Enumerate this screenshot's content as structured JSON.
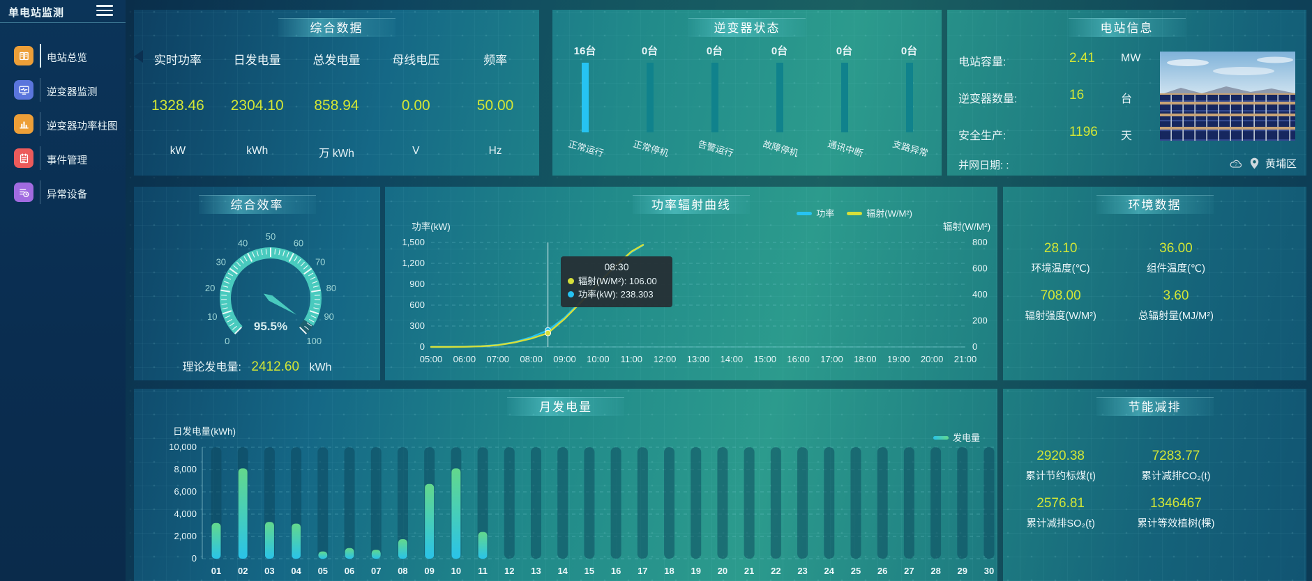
{
  "app": {
    "title": "单电站监测"
  },
  "sidebar": {
    "items": [
      {
        "label": "电站总览",
        "icon": "overview-book-icon",
        "color": "#ED9F38",
        "active": true
      },
      {
        "label": "逆变器监测",
        "icon": "inverter-monitor-icon",
        "color": "#5A75DC",
        "active": false
      },
      {
        "label": "逆变器功率柱图",
        "icon": "power-barchart-icon",
        "color": "#ED9F38",
        "active": false
      },
      {
        "label": "事件管理",
        "icon": "event-journal-icon",
        "color": "#EC5B5B",
        "active": false
      },
      {
        "label": "异常设备",
        "icon": "abnormal-device-icon",
        "color": "#A16BE0",
        "active": false
      }
    ]
  },
  "panels": {
    "summary": {
      "title": "综合数据",
      "metrics": [
        {
          "label": "实时功率",
          "value": "1328.46",
          "unit": "kW"
        },
        {
          "label": "日发电量",
          "value": "2304.10",
          "unit": "kWh"
        },
        {
          "label": "总发电量",
          "value": "858.94",
          "unit": "万 kWh"
        },
        {
          "label": "母线电压",
          "value": "0.00",
          "unit": "V"
        },
        {
          "label": "频率",
          "value": "50.00",
          "unit": "Hz"
        }
      ]
    },
    "inverter_status": {
      "title": "逆变器状态",
      "bars": [
        {
          "count": "16台",
          "label": "正常运行",
          "highlight": true
        },
        {
          "count": "0台",
          "label": "正常停机",
          "highlight": false
        },
        {
          "count": "0台",
          "label": "告警运行",
          "highlight": false
        },
        {
          "count": "0台",
          "label": "故障停机",
          "highlight": false
        },
        {
          "count": "0台",
          "label": "通讯中断",
          "highlight": false
        },
        {
          "count": "0台",
          "label": "支路异常",
          "highlight": false
        }
      ]
    },
    "station_info": {
      "title": "电站信息",
      "rows": [
        {
          "label": "电站容量:",
          "value": "2.41",
          "unit": "MW"
        },
        {
          "label": "逆变器数量:",
          "value": "16",
          "unit": "台"
        },
        {
          "label": "安全生产:",
          "value": "1196",
          "unit": "天"
        }
      ],
      "grid_date_label": "并网日期:  :",
      "location": "黄埔区"
    },
    "efficiency": {
      "title": "综合效率",
      "theory_label": "理论发电量:",
      "theory_value": "2412.60",
      "theory_unit": "kWh"
    },
    "power_curve": {
      "title": "功率辐射曲线",
      "legend": [
        "功率",
        "辐射(W/M²)"
      ],
      "tooltip": {
        "time": "08:30",
        "rows": [
          {
            "text": "辐射(W/M²): 106.00",
            "color": "#D6DF3A"
          },
          {
            "text": "功率(kW): 238.303",
            "color": "#26C3F2"
          }
        ]
      }
    },
    "environment": {
      "title": "环境数据",
      "cells": [
        {
          "value": "28.10",
          "label": "环境温度(℃)"
        },
        {
          "value": "36.00",
          "label": "组件温度(℃)"
        },
        {
          "value": "708.00",
          "label": "辐射强度(W/M²)"
        },
        {
          "value": "3.60",
          "label": "总辐射量(MJ/M²)"
        }
      ]
    },
    "monthly": {
      "title": "月发电量",
      "legend": "发电量"
    },
    "saving": {
      "title": "节能减排",
      "cells": [
        {
          "value": "2920.38",
          "label": "累计节约标煤(t)"
        },
        {
          "value": "7283.77",
          "label": "累计减排CO₂(t)"
        },
        {
          "value": "2576.81",
          "label": "累计减排SO₂(t)"
        },
        {
          "value": "1346467",
          "label": "累计等效植树(棵)"
        }
      ]
    }
  },
  "colors": {
    "accent_value": "#D3E635",
    "power_line": "#26C3F2",
    "radiation_line": "#D6DF3A",
    "bar_active": "#26C3F2",
    "bar_idle": "#10828C",
    "gauge": "#49CABE",
    "monthly_bar_bottom": "#2AC3E8",
    "monthly_bar_top": "#63D88C"
  },
  "chart_data": [
    {
      "type": "line",
      "title": "功率辐射曲线",
      "x": [
        "05:00",
        "06:00",
        "07:00",
        "08:00",
        "09:00",
        "10:00",
        "11:00",
        "12:00",
        "13:00",
        "14:00",
        "15:00",
        "16:00",
        "17:00",
        "18:00",
        "19:00",
        "20:00",
        "21:00"
      ],
      "left": {
        "label": "功率(kW)",
        "min": 0,
        "max": 1500,
        "step": 300
      },
      "right": {
        "label": "辐射(W/M²)",
        "min": 0,
        "max": 800,
        "step": 200
      },
      "grid": "dashed-horizontal",
      "legend_position": "top-right",
      "series": [
        {
          "name": "功率",
          "axis": "left",
          "color": "#26C3F2",
          "points": [
            [
              5,
              0
            ],
            [
              5.5,
              0
            ],
            [
              6,
              3
            ],
            [
              6.5,
              10
            ],
            [
              7,
              30
            ],
            [
              7.5,
              70
            ],
            [
              8,
              140
            ],
            [
              8.5,
              238.303
            ],
            [
              9,
              420
            ],
            [
              9.5,
              660
            ],
            [
              10,
              920
            ],
            [
              10.5,
              1160
            ],
            [
              11,
              1360
            ],
            [
              11.35,
              1460
            ]
          ]
        },
        {
          "name": "辐射(W/M²)",
          "axis": "right",
          "color": "#D6DF3A",
          "points": [
            [
              5,
              0
            ],
            [
              5.5,
              0
            ],
            [
              6,
              1
            ],
            [
              6.5,
              5
            ],
            [
              7,
              14
            ],
            [
              7.5,
              34
            ],
            [
              8,
              64
            ],
            [
              8.5,
              106
            ],
            [
              9,
              215
            ],
            [
              9.5,
              345
            ],
            [
              10,
              485
            ],
            [
              10.5,
              615
            ],
            [
              11,
              730
            ],
            [
              11.35,
              782
            ]
          ]
        }
      ],
      "pointer": {
        "hour": 8.5,
        "time": "08:30",
        "values": [
          238.303,
          106.0
        ]
      }
    },
    {
      "type": "bar",
      "title": "月发电量",
      "ylabel": "日发电量(kWh)",
      "legend": "发电量",
      "ymax": 10000,
      "ystep": 2000,
      "categories": [
        "01",
        "02",
        "03",
        "04",
        "05",
        "06",
        "07",
        "08",
        "09",
        "10",
        "11",
        "12",
        "13",
        "14",
        "15",
        "16",
        "17",
        "18",
        "19",
        "20",
        "21",
        "22",
        "23",
        "24",
        "25",
        "26",
        "27",
        "28",
        "29",
        "30"
      ],
      "values": [
        3200,
        8100,
        3300,
        3150,
        650,
        950,
        800,
        1750,
        6700,
        8100,
        2400,
        0,
        0,
        0,
        0,
        0,
        0,
        0,
        0,
        0,
        0,
        0,
        0,
        0,
        0,
        0,
        0,
        0,
        0,
        0
      ]
    },
    {
      "type": "gauge",
      "title": "综合效率",
      "value": 95.5,
      "display": "95.5%",
      "min": 0,
      "max": 100,
      "label_step": 10
    },
    {
      "type": "bar",
      "title": "逆变器状态",
      "categories": [
        "正常运行",
        "正常停机",
        "告警运行",
        "故障停机",
        "通讯中断",
        "支路异常"
      ],
      "values": [
        16,
        0,
        0,
        0,
        0,
        0
      ],
      "unit": "台"
    }
  ]
}
